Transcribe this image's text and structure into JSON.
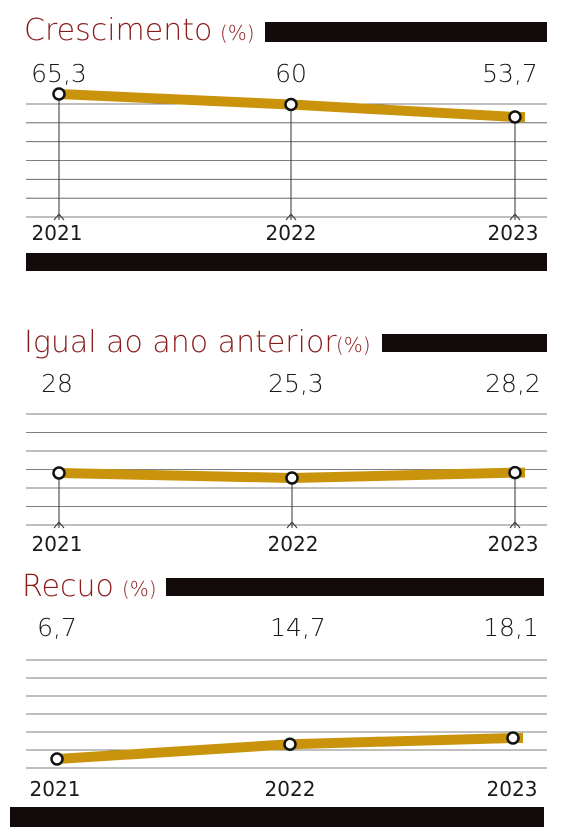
{
  "colors": {
    "title": "#8a1c1c",
    "unit": "#8a1c1c",
    "line": "#c9930c",
    "bar": "#130a0a",
    "grid": "#555555",
    "marker_fill": "#ffffff",
    "marker_stroke": "#111111"
  },
  "chart_data": [
    {
      "type": "line",
      "title": "Crescimento",
      "unit": "(%)",
      "x": [
        "2021",
        "2022",
        "2023"
      ],
      "values": [
        65.3,
        60,
        53.7
      ],
      "value_labels": [
        "65,3",
        "60",
        "53,7"
      ],
      "grid": true
    },
    {
      "type": "line",
      "title": "Igual ao ano anterior",
      "unit": "(%)",
      "x": [
        "2021",
        "2022",
        "2023"
      ],
      "values": [
        28,
        25.3,
        28.2
      ],
      "value_labels": [
        "28",
        "25,3",
        "28,2"
      ],
      "grid": true
    },
    {
      "type": "line",
      "title": "Recuo",
      "unit": "(%)",
      "x": [
        "2021",
        "2022",
        "2023"
      ],
      "values": [
        6.7,
        14.7,
        18.1
      ],
      "value_labels": [
        "6,7",
        "14,7",
        "18,1"
      ],
      "grid": true
    }
  ]
}
